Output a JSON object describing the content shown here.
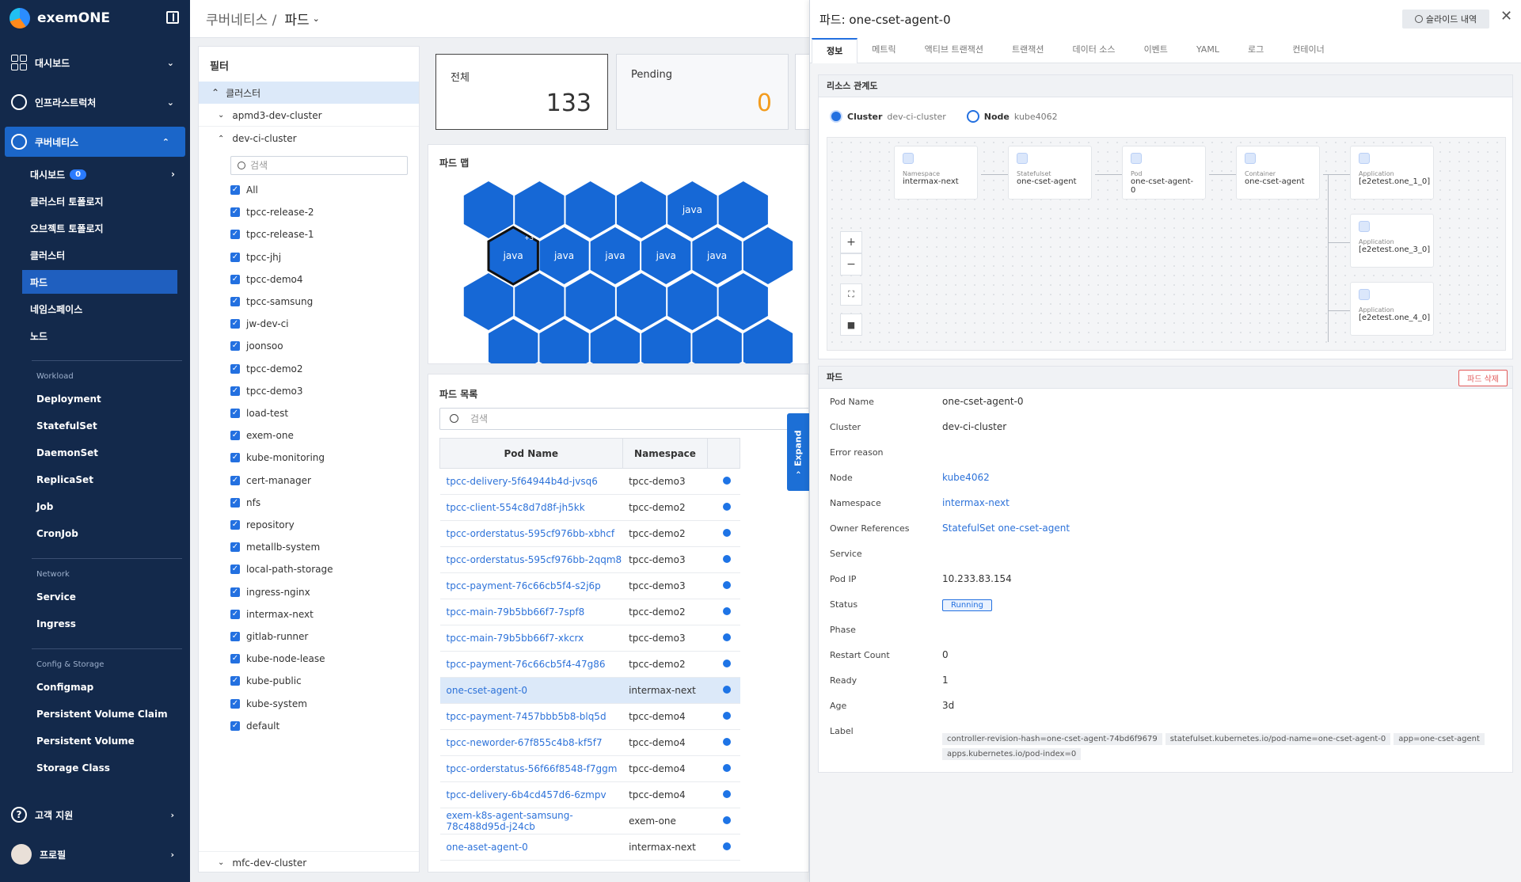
{
  "app": {
    "name": "exemONE"
  },
  "sidebar": {
    "top": [
      {
        "label": "대시보드"
      },
      {
        "label": "인프라스트럭처"
      },
      {
        "label": "쿠버네티스"
      }
    ],
    "sub": [
      {
        "label": "대시보드",
        "badge": "0"
      },
      {
        "label": "클러스터 토폴로지"
      },
      {
        "label": "오브젝트 토폴로지"
      },
      {
        "label": "클러스터"
      },
      {
        "label": "파드"
      },
      {
        "label": "네임스페이스"
      },
      {
        "label": "노드"
      }
    ],
    "workload_title": "Workload",
    "workload": [
      "Deployment",
      "StatefulSet",
      "DaemonSet",
      "ReplicaSet",
      "Job",
      "CronJob"
    ],
    "network_title": "Network",
    "network": [
      "Service",
      "Ingress"
    ],
    "storage_title": "Config & Storage",
    "storage": [
      "Configmap",
      "Persistent Volume Claim",
      "Persistent Volume",
      "Storage Class"
    ],
    "support": "고객 지원",
    "profile": "프로필"
  },
  "header": {
    "crumb": "쿠버네티스 /",
    "current": "파드"
  },
  "filter": {
    "title": "필터",
    "root": "클러스터",
    "clusters": [
      "apmd3-dev-cluster",
      "dev-ci-cluster",
      "mfc-dev-cluster"
    ],
    "search_placeholder": "검색",
    "namespaces": [
      "All",
      "tpcc-release-2",
      "tpcc-release-1",
      "tpcc-jhj",
      "tpcc-demo4",
      "tpcc-samsung",
      "jw-dev-ci",
      "joonsoo",
      "tpcc-demo2",
      "tpcc-demo3",
      "load-test",
      "exem-one",
      "kube-monitoring",
      "cert-manager",
      "nfs",
      "repository",
      "metallb-system",
      "local-path-storage",
      "ingress-nginx",
      "intermax-next",
      "gitlab-runner",
      "kube-node-lease",
      "kube-public",
      "kube-system",
      "default"
    ]
  },
  "summary": {
    "total_label": "전체",
    "total": "133",
    "pending_label": "Pending",
    "pending": "0"
  },
  "podmap": {
    "title": "파드 맵",
    "label": "java",
    "badge": "+3"
  },
  "podlist": {
    "title": "파드 목록",
    "search_placeholder": "검색",
    "col_name": "Pod Name",
    "col_ns": "Namespace",
    "rows": [
      {
        "name": "tpcc-delivery-5f64944b4d-jvsq6",
        "ns": "tpcc-demo3"
      },
      {
        "name": "tpcc-client-554c8d7d8f-jh5kk",
        "ns": "tpcc-demo2"
      },
      {
        "name": "tpcc-orderstatus-595cf976bb-xbhcf",
        "ns": "tpcc-demo2"
      },
      {
        "name": "tpcc-orderstatus-595cf976bb-2qqm8",
        "ns": "tpcc-demo3"
      },
      {
        "name": "tpcc-payment-76c66cb5f4-s2j6p",
        "ns": "tpcc-demo3"
      },
      {
        "name": "tpcc-main-79b5bb66f7-7spf8",
        "ns": "tpcc-demo2"
      },
      {
        "name": "tpcc-main-79b5bb66f7-xkcrx",
        "ns": "tpcc-demo3"
      },
      {
        "name": "tpcc-payment-76c66cb5f4-47g86",
        "ns": "tpcc-demo2"
      },
      {
        "name": "one-cset-agent-0",
        "ns": "intermax-next"
      },
      {
        "name": "tpcc-payment-7457bbb5b8-blq5d",
        "ns": "tpcc-demo4"
      },
      {
        "name": "tpcc-neworder-67f855c4b8-kf5f7",
        "ns": "tpcc-demo4"
      },
      {
        "name": "tpcc-orderstatus-56f66f8548-f7ggm",
        "ns": "tpcc-demo4"
      },
      {
        "name": "tpcc-delivery-6b4cd457d6-6zmpv",
        "ns": "tpcc-demo4"
      },
      {
        "name": "exem-k8s-agent-samsung-78c488d95d-j24cb",
        "ns": "exem-one"
      },
      {
        "name": "one-aset-agent-0",
        "ns": "intermax-next"
      }
    ],
    "expand": "Expand"
  },
  "detail": {
    "title": "파드: one-cset-agent-0",
    "slide_btn": "슬라이드 내역",
    "tabs": [
      "정보",
      "메트릭",
      "액티브 트랜잭션",
      "트랜잭션",
      "데이터 소스",
      "이벤트",
      "YAML",
      "로그",
      "컨테이너"
    ],
    "resource_title": "리소스 관계도",
    "chip_cluster_label": "Cluster",
    "chip_cluster_value": "dev-ci-cluster",
    "chip_node_label": "Node",
    "chip_node_value": "kube4062",
    "topology": [
      {
        "type": "Namespace",
        "name": "intermax-next"
      },
      {
        "type": "Statefulset",
        "name": "one-cset-agent"
      },
      {
        "type": "Pod",
        "name": "one-cset-agent-0"
      },
      {
        "type": "Container",
        "name": "one-cset-agent"
      },
      {
        "type": "Application",
        "name": "[e2etest.one_1_0]"
      },
      {
        "type": "Application",
        "name": "[e2etest.one_3_0]"
      },
      {
        "type": "Application",
        "name": "[e2etest.one_4_0]"
      }
    ],
    "pod_section": "파드",
    "delete_btn": "파드 삭제",
    "fields": [
      {
        "k": "Pod Name",
        "v": "one-cset-agent-0"
      },
      {
        "k": "Cluster",
        "v": "dev-ci-cluster"
      },
      {
        "k": "Error reason",
        "v": ""
      },
      {
        "k": "Node",
        "v": "kube4062"
      },
      {
        "k": "Namespace",
        "v": "intermax-next"
      },
      {
        "k": "Owner References",
        "v": "StatefulSet one-cset-agent"
      },
      {
        "k": "Service",
        "v": ""
      },
      {
        "k": "Pod IP",
        "v": "10.233.83.154"
      },
      {
        "k": "Status",
        "v": "Running"
      },
      {
        "k": "Phase",
        "v": ""
      },
      {
        "k": "Restart Count",
        "v": "0"
      },
      {
        "k": "Ready",
        "v": "1"
      },
      {
        "k": "Age",
        "v": "3d"
      },
      {
        "k": "Label",
        "v": ""
      }
    ],
    "labels": [
      "controller-revision-hash=one-cset-agent-74bd6f9679",
      "statefulset.kubernetes.io/pod-name=one-cset-agent-0",
      "app=one-cset-agent",
      "apps.kubernetes.io/pod-index=0"
    ]
  },
  "colors": {
    "sidebar": "#13294b",
    "accent": "#2370e0",
    "hex": "#1668d6"
  }
}
